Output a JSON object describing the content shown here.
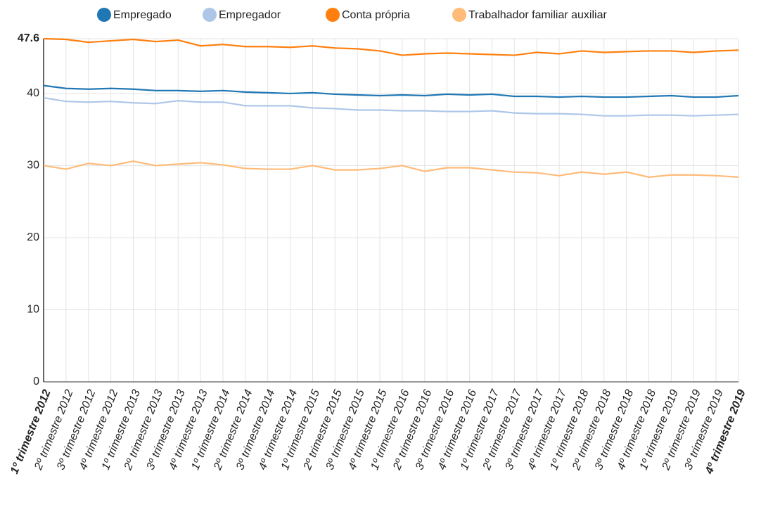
{
  "chart_data": {
    "type": "line",
    "categories": [
      "1º trimestre 2012",
      "2º trimestre 2012",
      "3º trimestre 2012",
      "4º trimestre 2012",
      "1º trimestre 2013",
      "2º trimestre 2013",
      "3º trimestre 2013",
      "4º trimestre 2013",
      "1º trimestre 2014",
      "2º trimestre 2014",
      "3º trimestre 2014",
      "4º trimestre 2014",
      "1º trimestre 2015",
      "2º trimestre 2015",
      "3º trimestre 2015",
      "4º trimestre 2015",
      "1º trimestre 2016",
      "2º trimestre 2016",
      "3º trimestre 2016",
      "4º trimestre 2016",
      "1º trimestre 2017",
      "2º trimestre 2017",
      "3º trimestre 2017",
      "4º trimestre 2017",
      "1º trimestre 2018",
      "2º trimestre 2018",
      "3º trimestre 2018",
      "4º trimestre 2018",
      "1º trimestre 2019",
      "2º trimestre 2019",
      "3º trimestre 2019",
      "4º trimestre 2019"
    ],
    "series": [
      {
        "name": "Empregado",
        "color": "#1f77b4",
        "values": [
          41.1,
          40.7,
          40.6,
          40.7,
          40.6,
          40.4,
          40.4,
          40.3,
          40.4,
          40.2,
          40.1,
          40.0,
          40.1,
          39.9,
          39.8,
          39.7,
          39.8,
          39.7,
          39.9,
          39.8,
          39.9,
          39.6,
          39.6,
          39.5,
          39.6,
          39.5,
          39.5,
          39.6,
          39.7,
          39.5,
          39.5,
          39.7
        ]
      },
      {
        "name": "Empregador",
        "color": "#aec7e8",
        "values": [
          39.4,
          38.9,
          38.8,
          38.9,
          38.7,
          38.6,
          39.0,
          38.8,
          38.8,
          38.3,
          38.3,
          38.3,
          38.0,
          37.9,
          37.7,
          37.7,
          37.6,
          37.6,
          37.5,
          37.5,
          37.6,
          37.3,
          37.2,
          37.2,
          37.1,
          36.9,
          36.9,
          37.0,
          37.0,
          36.9,
          37.0,
          37.1
        ]
      },
      {
        "name": "Conta própria",
        "color": "#ff7f0e",
        "values": [
          47.6,
          47.5,
          47.1,
          47.3,
          47.5,
          47.2,
          47.4,
          46.6,
          46.8,
          46.5,
          46.5,
          46.4,
          46.6,
          46.3,
          46.2,
          45.9,
          45.3,
          45.5,
          45.6,
          45.5,
          45.4,
          45.3,
          45.7,
          45.5,
          45.9,
          45.7,
          45.8,
          45.9,
          45.9,
          45.7,
          45.9,
          46.0
        ]
      },
      {
        "name": "Trabalhador familiar auxiliar",
        "color": "#ffbb78",
        "values": [
          30.0,
          29.5,
          30.3,
          30.0,
          30.6,
          30.0,
          30.2,
          30.4,
          30.1,
          29.6,
          29.5,
          29.5,
          30.0,
          29.4,
          29.4,
          29.6,
          30.0,
          29.2,
          29.7,
          29.7,
          29.4,
          29.1,
          29.0,
          28.6,
          29.1,
          28.8,
          29.1,
          28.4,
          28.7,
          28.7,
          28.6,
          28.4
        ]
      }
    ],
    "ylim": [
      0,
      47.6
    ],
    "yticks": [
      0,
      10,
      20,
      30,
      40,
      47.6
    ],
    "grid": true
  }
}
